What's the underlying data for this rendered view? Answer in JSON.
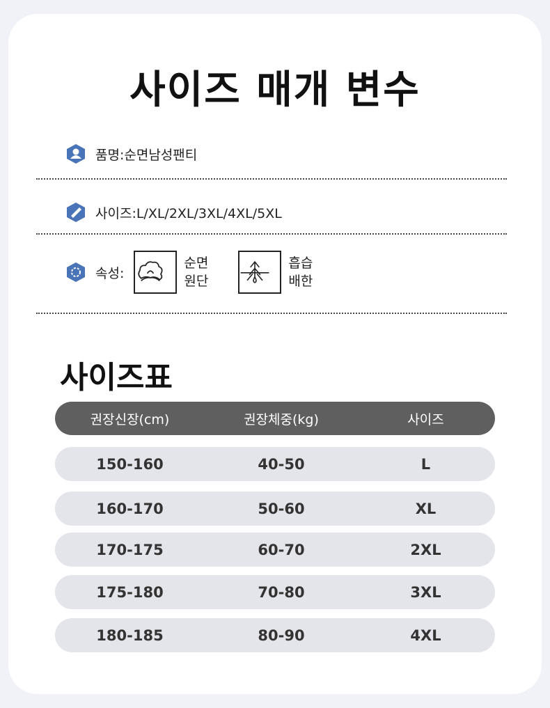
{
  "title": "사이즈 매개 변수",
  "specs": {
    "name": "품명:순면남성팬티",
    "sizes": "사이즈:L/XL/2XL/3XL/4XL/5XL",
    "attr_label": "속성:",
    "attrs": [
      {
        "label1": "순면",
        "label2": "원단",
        "icon": "cotton-icon"
      },
      {
        "label1": "흡습",
        "label2": "배한",
        "icon": "moisture-wicking-icon"
      }
    ]
  },
  "size_table": {
    "title": "사이즈표",
    "headers": [
      "권장신장(cm)",
      "권장체중(kg)",
      "사이즈"
    ],
    "rows": [
      [
        "150-160",
        "40-50",
        "L"
      ],
      [
        "160-170",
        "50-60",
        "XL"
      ],
      [
        "170-175",
        "60-70",
        "2XL"
      ],
      [
        "175-180",
        "70-80",
        "3XL"
      ],
      [
        "180-185",
        "80-90",
        "4XL"
      ]
    ]
  },
  "colors": {
    "icon_blue": "#4a74b8",
    "header_bg": "#5f5f5f",
    "row_bg": "#e4e5ea"
  }
}
